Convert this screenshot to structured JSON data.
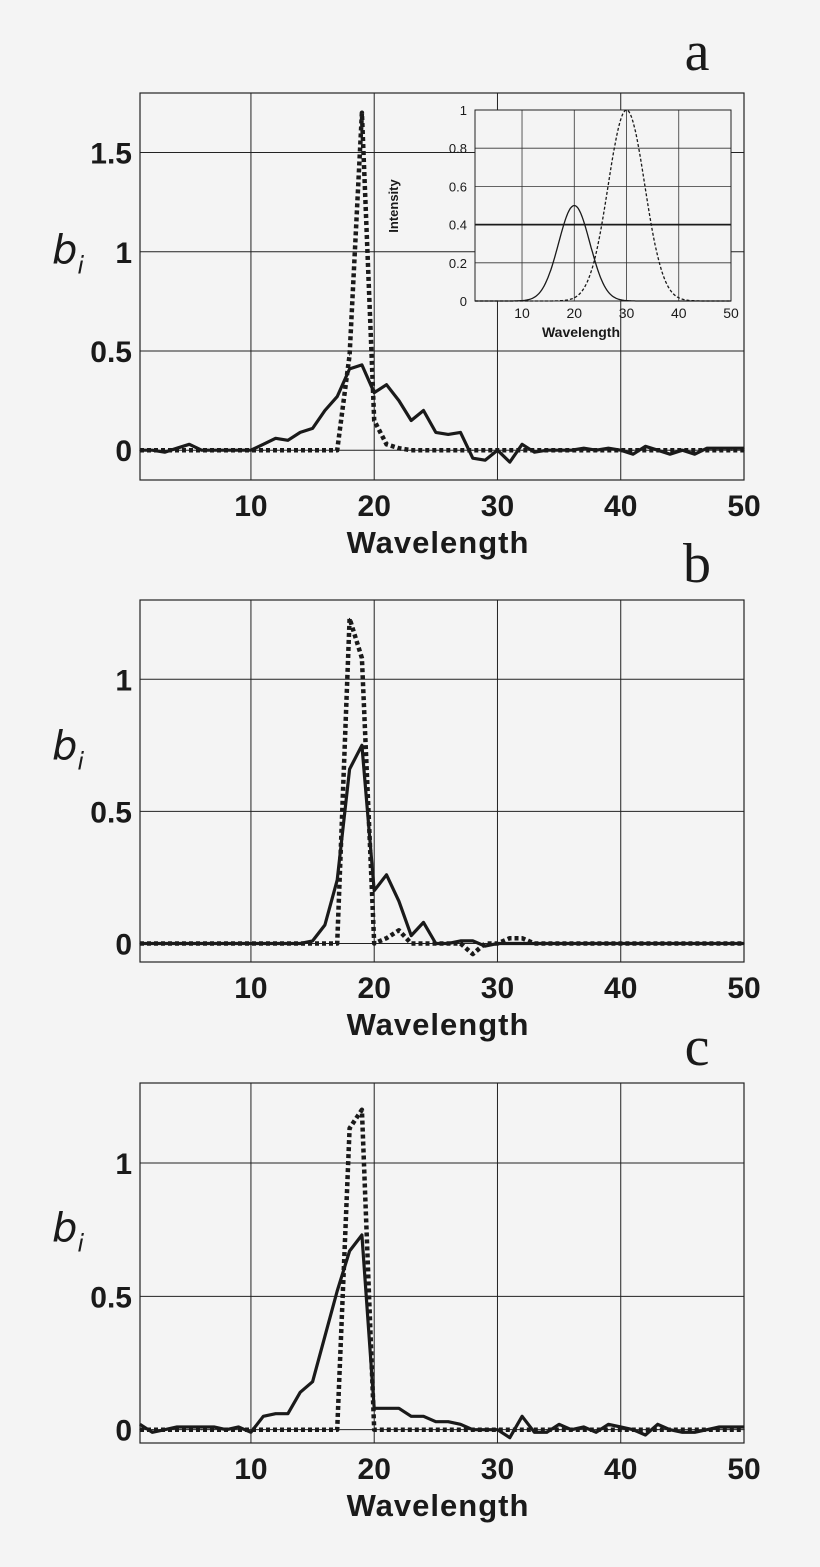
{
  "chart_data": [
    {
      "type": "line",
      "panel_label": "a",
      "xlabel": "Wavelength",
      "ylabel_main": "b",
      "ylabel_sub": "i",
      "xlim": [
        1,
        50
      ],
      "ylim": [
        -0.15,
        1.8
      ],
      "xticks": [
        10,
        20,
        30,
        40,
        50
      ],
      "yticks": [
        0,
        0.5,
        1,
        1.5
      ],
      "ytick_labels": [
        "0",
        "0.5",
        "1",
        "1.5"
      ],
      "grid": true,
      "series": [
        {
          "name": "solid",
          "style": "solid",
          "x": [
            1,
            2,
            3,
            4,
            5,
            6,
            7,
            8,
            9,
            10,
            11,
            12,
            13,
            14,
            15,
            16,
            17,
            18,
            19,
            20,
            21,
            22,
            23,
            24,
            25,
            26,
            27,
            28,
            29,
            30,
            31,
            32,
            33,
            34,
            35,
            36,
            37,
            38,
            39,
            40,
            41,
            42,
            43,
            44,
            45,
            46,
            47,
            48,
            49,
            50
          ],
          "y": [
            0,
            0,
            -0.01,
            0.01,
            0.03,
            0,
            0,
            0,
            0,
            0,
            0.03,
            0.06,
            0.05,
            0.09,
            0.11,
            0.2,
            0.27,
            0.41,
            0.43,
            0.29,
            0.33,
            0.25,
            0.15,
            0.2,
            0.09,
            0.08,
            0.09,
            -0.04,
            -0.05,
            0,
            -0.06,
            0.03,
            -0.01,
            0,
            0,
            0,
            0.01,
            0,
            0.01,
            0,
            -0.02,
            0.02,
            0,
            -0.02,
            0,
            -0.02,
            0.01,
            0.01,
            0.01,
            0.01
          ]
        },
        {
          "name": "dotted",
          "style": "dotted",
          "x": [
            1,
            2,
            3,
            4,
            5,
            6,
            7,
            8,
            9,
            10,
            11,
            12,
            13,
            14,
            15,
            16,
            17,
            18,
            19,
            20,
            21,
            22,
            23,
            24,
            25,
            26,
            27,
            28,
            29,
            30,
            31,
            32,
            33,
            34,
            35,
            36,
            37,
            38,
            39,
            40,
            41,
            42,
            43,
            44,
            45,
            46,
            47,
            48,
            49,
            50
          ],
          "y": [
            0,
            0,
            0,
            0,
            0,
            0,
            0,
            0,
            0,
            0,
            0,
            0,
            0,
            0,
            0,
            0,
            0,
            0.48,
            1.7,
            0.15,
            0.03,
            0.01,
            0,
            0,
            0,
            0,
            0,
            0,
            0,
            0,
            0,
            0,
            0,
            0,
            0,
            0,
            0,
            0,
            0,
            0,
            0,
            0,
            0,
            0,
            0,
            0,
            0,
            0,
            0,
            0
          ]
        }
      ],
      "inset": {
        "type": "line",
        "xlabel": "Wavelength",
        "ylabel": "Intensity",
        "xlim": [
          1,
          50
        ],
        "ylim": [
          0,
          1
        ],
        "xticks": [
          10,
          20,
          30,
          40,
          50
        ],
        "yticks": [
          0,
          0.2,
          0.4,
          0.6,
          0.8,
          1
        ],
        "ytick_labels": [
          "0",
          "0.2",
          "0.4",
          "0.6",
          "0.8",
          "1"
        ],
        "hline": 0.4,
        "series": [
          {
            "name": "solid",
            "style": "solid",
            "shape": "gaussian",
            "center": 20,
            "sigma": 3,
            "amplitude": 0.5
          },
          {
            "name": "dashed",
            "style": "dashed",
            "shape": "gaussian",
            "center": 30,
            "sigma": 3.5,
            "amplitude": 1.0
          }
        ]
      }
    },
    {
      "type": "line",
      "panel_label": "b",
      "xlabel": "Wavelength",
      "ylabel_main": "b",
      "ylabel_sub": "i",
      "xlim": [
        1,
        50
      ],
      "ylim": [
        -0.07,
        1.3
      ],
      "xticks": [
        10,
        20,
        30,
        40,
        50
      ],
      "yticks": [
        0,
        0.5,
        1
      ],
      "ytick_labels": [
        "0",
        "0.5",
        "1"
      ],
      "grid": true,
      "series": [
        {
          "name": "solid",
          "style": "solid",
          "x": [
            1,
            2,
            3,
            4,
            5,
            6,
            7,
            8,
            9,
            10,
            11,
            12,
            13,
            14,
            15,
            16,
            17,
            18,
            19,
            20,
            21,
            22,
            23,
            24,
            25,
            26,
            27,
            28,
            29,
            30,
            31,
            32,
            33,
            34,
            35,
            36,
            37,
            38,
            39,
            40,
            41,
            42,
            43,
            44,
            45,
            46,
            47,
            48,
            49,
            50
          ],
          "y": [
            0,
            0,
            0,
            0,
            0,
            0,
            0,
            0,
            0,
            0,
            0,
            0,
            0,
            0,
            0.01,
            0.07,
            0.24,
            0.66,
            0.75,
            0.2,
            0.26,
            0.16,
            0.03,
            0.08,
            0,
            0,
            0.01,
            0.01,
            -0.01,
            0,
            0,
            0,
            0,
            0,
            0,
            0,
            0,
            0,
            0,
            0,
            0,
            0,
            0,
            0,
            0,
            0,
            0,
            0,
            0,
            0
          ]
        },
        {
          "name": "dotted",
          "style": "dotted",
          "x": [
            1,
            2,
            3,
            4,
            5,
            6,
            7,
            8,
            9,
            10,
            11,
            12,
            13,
            14,
            15,
            16,
            17,
            18,
            19,
            20,
            21,
            22,
            23,
            24,
            25,
            26,
            27,
            28,
            29,
            30,
            31,
            32,
            33,
            34,
            35,
            36,
            37,
            38,
            39,
            40,
            41,
            42,
            43,
            44,
            45,
            46,
            47,
            48,
            49,
            50
          ],
          "y": [
            0,
            0,
            0,
            0,
            0,
            0,
            0,
            0,
            0,
            0,
            0,
            0,
            0,
            0,
            0,
            0,
            0,
            1.23,
            1.08,
            0,
            0.02,
            0.05,
            0,
            0,
            0,
            0,
            0,
            -0.04,
            0,
            0,
            0.02,
            0.02,
            0,
            0,
            0,
            0,
            0,
            0,
            0,
            0,
            0,
            0,
            0,
            0,
            0,
            0,
            0,
            0,
            0,
            0
          ]
        }
      ]
    },
    {
      "type": "line",
      "panel_label": "c",
      "xlabel": "Wavelength",
      "ylabel_main": "b",
      "ylabel_sub": "i",
      "xlim": [
        1,
        50
      ],
      "ylim": [
        -0.05,
        1.3
      ],
      "xticks": [
        10,
        20,
        30,
        40,
        50
      ],
      "yticks": [
        0,
        0.5,
        1
      ],
      "ytick_labels": [
        "0",
        "0.5",
        "1"
      ],
      "grid": true,
      "series": [
        {
          "name": "solid",
          "style": "solid",
          "x": [
            1,
            2,
            3,
            4,
            5,
            6,
            7,
            8,
            9,
            10,
            11,
            12,
            13,
            14,
            15,
            16,
            17,
            18,
            19,
            20,
            21,
            22,
            23,
            24,
            25,
            26,
            27,
            28,
            29,
            30,
            31,
            32,
            33,
            34,
            35,
            36,
            37,
            38,
            39,
            40,
            41,
            42,
            43,
            44,
            45,
            46,
            47,
            48,
            49,
            50
          ],
          "y": [
            0.02,
            -0.01,
            0,
            0.01,
            0.01,
            0.01,
            0.01,
            0,
            0.01,
            -0.01,
            0.05,
            0.06,
            0.06,
            0.14,
            0.18,
            0.35,
            0.52,
            0.67,
            0.73,
            0.08,
            0.08,
            0.08,
            0.05,
            0.05,
            0.03,
            0.03,
            0.02,
            0,
            0,
            0,
            -0.03,
            0.05,
            -0.01,
            -0.01,
            0.02,
            0,
            0.01,
            -0.01,
            0.02,
            0.01,
            0,
            -0.02,
            0.02,
            0,
            -0.01,
            -0.01,
            0,
            0.01,
            0.01,
            0.01
          ]
        },
        {
          "name": "dotted",
          "style": "dotted",
          "x": [
            1,
            2,
            3,
            4,
            5,
            6,
            7,
            8,
            9,
            10,
            11,
            12,
            13,
            14,
            15,
            16,
            17,
            18,
            19,
            20,
            21,
            22,
            23,
            24,
            25,
            26,
            27,
            28,
            29,
            30,
            31,
            32,
            33,
            34,
            35,
            36,
            37,
            38,
            39,
            40,
            41,
            42,
            43,
            44,
            45,
            46,
            47,
            48,
            49,
            50
          ],
          "y": [
            0,
            0,
            0,
            0,
            0,
            0,
            0,
            0,
            0,
            0,
            0,
            0,
            0,
            0,
            0,
            0,
            0,
            1.13,
            1.2,
            0,
            0,
            0,
            0,
            0,
            0,
            0,
            0,
            0,
            0,
            0,
            0,
            0,
            0,
            0,
            0,
            0,
            0,
            0,
            0,
            0,
            0,
            0,
            0,
            0,
            0,
            0,
            0,
            0,
            0,
            0
          ]
        }
      ]
    }
  ]
}
